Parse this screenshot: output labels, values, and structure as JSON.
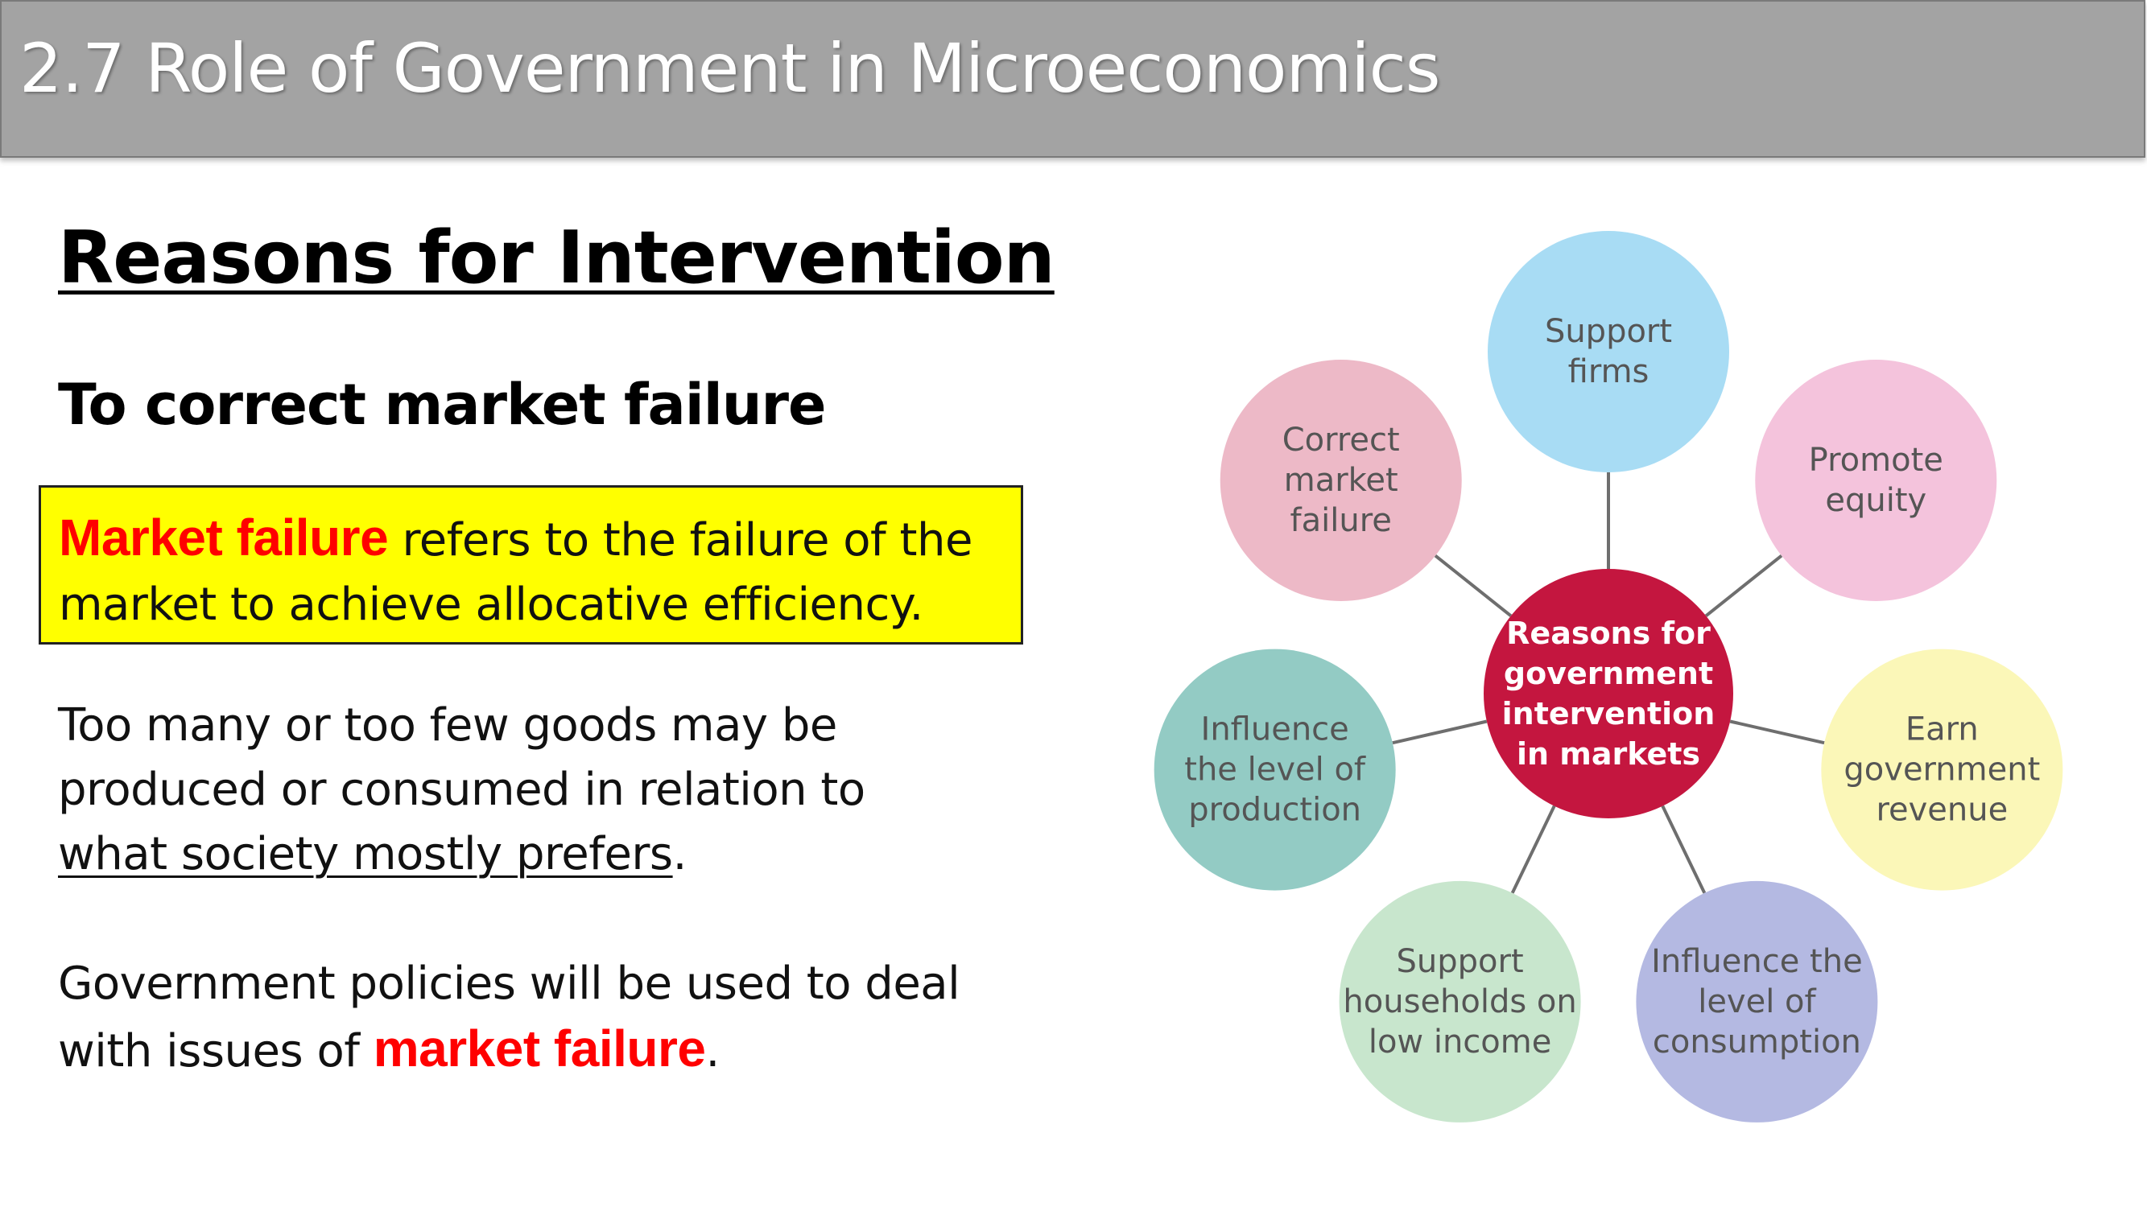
{
  "title": "2.7 Role of Government in Microeconomics",
  "heading": "Reasons for Intervention",
  "subheading": "To correct market failure",
  "definition": {
    "term": "Market failure",
    "line1_rest": " refers to the failure of the",
    "line2": "market to achieve allocative efficiency."
  },
  "para1": {
    "line1": "Too many or too few goods may be",
    "line2": "produced or consumed in relation to",
    "line3_underlined": "what society mostly prefers",
    "line3_end": "."
  },
  "para2": {
    "line1": "Government policies will be used to deal",
    "line2_start": "with issues of ",
    "line2_term": "market failure",
    "line2_end": "."
  },
  "diagram": {
    "center": {
      "lines": [
        "Reasons for",
        "government",
        "intervention",
        "in markets"
      ],
      "color": "#c4163f"
    },
    "nodes": [
      {
        "lines": [
          "Support",
          "firms"
        ],
        "color": "#a8dcf4"
      },
      {
        "lines": [
          "Promote",
          "equity"
        ],
        "color": "#f4c3dc"
      },
      {
        "lines": [
          "Earn",
          "government",
          "revenue"
        ],
        "color": "#fbf7b8"
      },
      {
        "lines": [
          "Influence the",
          "level of",
          "consumption"
        ],
        "color": "#b4b9e2"
      },
      {
        "lines": [
          "Support",
          "households on",
          "low income"
        ],
        "color": "#c8e6cd"
      },
      {
        "lines": [
          "Influence",
          "the level of",
          "production"
        ],
        "color": "#93cbc4"
      },
      {
        "lines": [
          "Correct",
          "market",
          "failure"
        ],
        "color": "#edb9c7"
      }
    ],
    "line_color": "#6e6e6e"
  }
}
